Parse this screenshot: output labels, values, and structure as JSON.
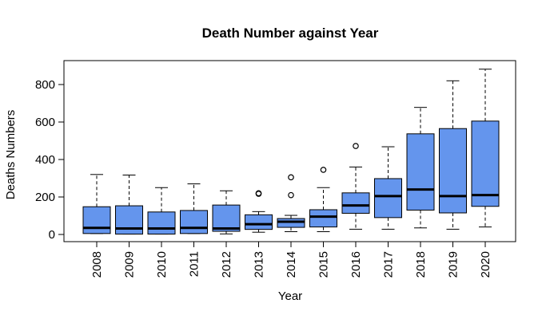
{
  "chart_data": {
    "type": "boxplot",
    "title": "Death Number against Year",
    "xlabel": "Year",
    "ylabel": "Deaths Numbers",
    "ylim": [
      -40,
      910
    ],
    "yticks": [
      0,
      200,
      400,
      600,
      800
    ],
    "grid": false,
    "box_color": "#6495ED",
    "categories": [
      "2008",
      "2009",
      "2010",
      "2011",
      "2012",
      "2013",
      "2014",
      "2015",
      "2016",
      "2017",
      "2018",
      "2019",
      "2020"
    ],
    "boxes": [
      {
        "min": 5,
        "q1": 5,
        "median": 35,
        "q3": 148,
        "max": 320,
        "outliers": []
      },
      {
        "min": 2,
        "q1": 2,
        "median": 32,
        "q3": 153,
        "max": 317,
        "outliers": []
      },
      {
        "min": 2,
        "q1": 2,
        "median": 32,
        "q3": 120,
        "max": 250,
        "outliers": []
      },
      {
        "min": 5,
        "q1": 5,
        "median": 35,
        "q3": 128,
        "max": 270,
        "outliers": []
      },
      {
        "min": 3,
        "q1": 17,
        "median": 32,
        "q3": 157,
        "max": 233,
        "outliers": []
      },
      {
        "min": 12,
        "q1": 27,
        "median": 55,
        "q3": 105,
        "max": 122,
        "outliers": [
          217,
          220
        ]
      },
      {
        "min": 15,
        "q1": 38,
        "median": 68,
        "q3": 85,
        "max": 102,
        "outliers": [
          210,
          305
        ]
      },
      {
        "min": 15,
        "q1": 40,
        "median": 95,
        "q3": 132,
        "max": 250,
        "outliers": [
          345
        ]
      },
      {
        "min": 28,
        "q1": 113,
        "median": 155,
        "q3": 222,
        "max": 360,
        "outliers": [
          472
        ]
      },
      {
        "min": 28,
        "q1": 90,
        "median": 205,
        "q3": 298,
        "max": 468,
        "outliers": []
      },
      {
        "min": 35,
        "q1": 130,
        "median": 240,
        "q3": 537,
        "max": 678,
        "outliers": []
      },
      {
        "min": 28,
        "q1": 115,
        "median": 205,
        "q3": 565,
        "max": 820,
        "outliers": []
      },
      {
        "min": 40,
        "q1": 150,
        "median": 210,
        "q3": 605,
        "max": 882,
        "outliers": []
      }
    ]
  }
}
